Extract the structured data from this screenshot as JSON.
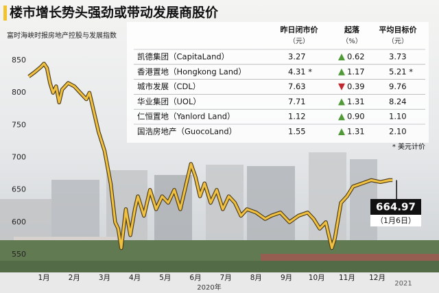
{
  "chart_data": {
    "type": "line",
    "title": "楼市增长势头强劲或带动发展商股价",
    "subtitle": "富时海峡时报房地产控股与发展指数",
    "x_label": "2020年",
    "next_year_label": "2021",
    "xlim": [
      0,
      12.2
    ],
    "xticks": [
      {
        "value": 0.5,
        "label": "1月"
      },
      {
        "value": 1.5,
        "label": "2月"
      },
      {
        "value": 2.5,
        "label": "3月"
      },
      {
        "value": 3.5,
        "label": "4月"
      },
      {
        "value": 4.5,
        "label": "5月"
      },
      {
        "value": 5.5,
        "label": "6月"
      },
      {
        "value": 6.5,
        "label": "7月"
      },
      {
        "value": 7.5,
        "label": "8月"
      },
      {
        "value": 8.5,
        "label": "9月"
      },
      {
        "value": 9.5,
        "label": "10月"
      },
      {
        "value": 10.5,
        "label": "11月"
      },
      {
        "value": 11.5,
        "label": "12月"
      }
    ],
    "ylim": [
      540,
      860
    ],
    "yticks": [
      550,
      600,
      650,
      700,
      750,
      800,
      850
    ],
    "series": [
      {
        "color": "#f0c040",
        "x": [
          0,
          0.2,
          0.4,
          0.5,
          0.6,
          0.7,
          0.8,
          0.9,
          1.0,
          1.1,
          1.3,
          1.5,
          1.7,
          1.9,
          2.0,
          2.1,
          2.3,
          2.5,
          2.7,
          2.85,
          2.95,
          3.05,
          3.15,
          3.2,
          3.35,
          3.5,
          3.6,
          3.8,
          4.0,
          4.2,
          4.4,
          4.6,
          4.8,
          5.0,
          5.2,
          5.35,
          5.5,
          5.65,
          5.8,
          6.0,
          6.2,
          6.4,
          6.6,
          6.8,
          7.0,
          7.2,
          7.5,
          7.8,
          8.0,
          8.3,
          8.6,
          8.9,
          9.2,
          9.4,
          9.6,
          9.8,
          9.9,
          10.0,
          10.1,
          10.3,
          10.5,
          10.7,
          11.0,
          11.3,
          11.6,
          11.9,
          12.0
        ],
        "values": [
          825,
          832,
          840,
          845,
          838,
          815,
          800,
          810,
          785,
          805,
          815,
          810,
          800,
          790,
          800,
          780,
          740,
          710,
          660,
          600,
          590,
          560,
          600,
          620,
          580,
          620,
          640,
          610,
          650,
          620,
          640,
          630,
          650,
          620,
          660,
          690,
          670,
          640,
          660,
          630,
          650,
          620,
          640,
          630,
          610,
          620,
          615,
          605,
          610,
          615,
          600,
          610,
          615,
          605,
          590,
          600,
          580,
          560,
          575,
          630,
          640,
          655,
          660,
          665,
          662,
          665,
          664.97
        ]
      }
    ],
    "last_date_label": "（1月6日）"
  },
  "table": {
    "columns": [
      {
        "title": "昨日闭市价",
        "unit": "（元）"
      },
      {
        "title": "起落",
        "unit": "（%）"
      },
      {
        "title": "平均目标价",
        "unit": "（元）"
      }
    ],
    "rows": [
      {
        "name": "凯德集团（CapitaLand）",
        "price": "3.27",
        "direction": "up",
        "change": "0.62",
        "target": "3.73"
      },
      {
        "name": "香港置地（Hongkong Land）",
        "price": "4.31 *",
        "direction": "up",
        "change": "1.17",
        "target": "5.21 *"
      },
      {
        "name": "城市发展（CDL）",
        "price": "7.63",
        "direction": "down",
        "change": "0.39",
        "target": "9.76"
      },
      {
        "name": "华业集团（UOL）",
        "price": "7.71",
        "direction": "up",
        "change": "1.31",
        "target": "8.24"
      },
      {
        "name": "仁恒置地（Yanlord Land）",
        "price": "1.12",
        "direction": "up",
        "change": "0.90",
        "target": "1.10"
      },
      {
        "name": "国浩房地产（GuocoLand）",
        "price": "1.55",
        "direction": "up",
        "change": "1.31",
        "target": "2.10"
      }
    ],
    "footnote": "* 美元计价"
  }
}
